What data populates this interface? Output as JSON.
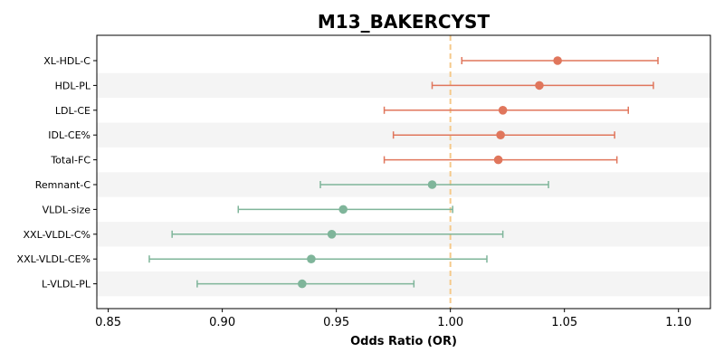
{
  "chart_data": {
    "type": "forest",
    "title": "M13_BAKERCYST",
    "xlabel": "Odds Ratio (OR)",
    "xlim": [
      0.845,
      1.114
    ],
    "xticks": [
      "0.85",
      "0.90",
      "0.95",
      "1.00",
      "1.05",
      "1.10"
    ],
    "reference_line": 1.0,
    "grid": false,
    "band_color": "#f4f4f4",
    "reference_color": "#f5c98a",
    "positive_color": "#e0765c",
    "negative_color": "#7fb59a",
    "rows": [
      {
        "label": "XL-HDL-C",
        "or": 1.047,
        "lo": 1.005,
        "hi": 1.091
      },
      {
        "label": "HDL-PL",
        "or": 1.039,
        "lo": 0.992,
        "hi": 1.089
      },
      {
        "label": "LDL-CE",
        "or": 1.023,
        "lo": 0.971,
        "hi": 1.078
      },
      {
        "label": "IDL-CE%",
        "or": 1.022,
        "lo": 0.975,
        "hi": 1.072
      },
      {
        "label": "Total-FC",
        "or": 1.021,
        "lo": 0.971,
        "hi": 1.073
      },
      {
        "label": "Remnant-C",
        "or": 0.992,
        "lo": 0.943,
        "hi": 1.043
      },
      {
        "label": "VLDL-size",
        "or": 0.953,
        "lo": 0.907,
        "hi": 1.001
      },
      {
        "label": "XXL-VLDL-C%",
        "or": 0.948,
        "lo": 0.878,
        "hi": 1.023
      },
      {
        "label": "XXL-VLDL-CE%",
        "or": 0.939,
        "lo": 0.868,
        "hi": 1.016
      },
      {
        "label": "L-VLDL-PL",
        "or": 0.935,
        "lo": 0.889,
        "hi": 0.984
      }
    ]
  }
}
